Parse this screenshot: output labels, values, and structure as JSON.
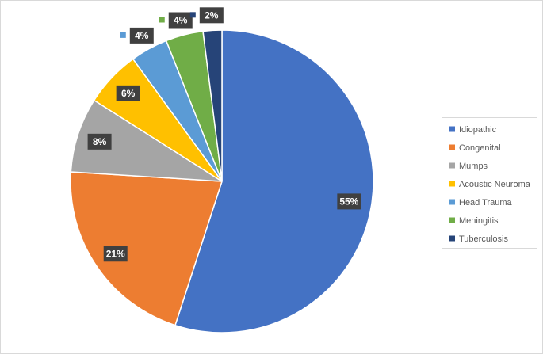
{
  "chart_data": {
    "type": "pie",
    "categories": [
      "Idiopathic",
      "Congenital",
      "Mumps",
      "Acoustic Neuroma",
      "Head Trauma",
      "Meningitis",
      "Tuberculosis"
    ],
    "values": [
      55,
      21,
      8,
      6,
      4,
      4,
      2
    ],
    "value_labels": [
      "55%",
      "21%",
      "8%",
      "6%",
      "4%",
      "4%",
      "2%"
    ],
    "colors": [
      "#4472c4",
      "#ed7d31",
      "#a5a5a5",
      "#ffc000",
      "#5b9bd5",
      "#70ad47",
      "#264478"
    ],
    "legend": "right"
  }
}
